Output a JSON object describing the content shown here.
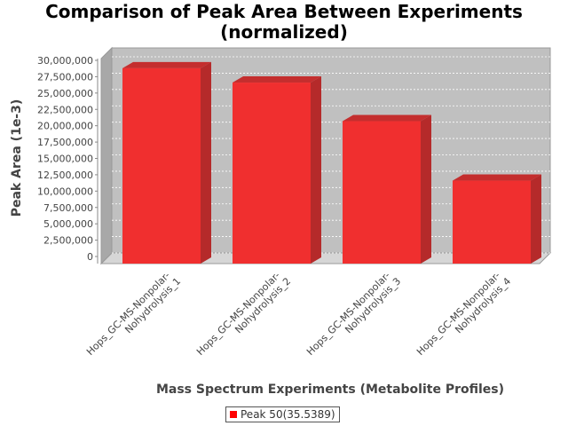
{
  "page": {
    "title_line1": "Comparison of Peak Area Between Experiments",
    "title_line2": "(normalized)"
  },
  "colors": {
    "bar_front": "#f02f2f",
    "bar_side": "#b52a2a",
    "bar_top": "#c42e2e",
    "plot_bg": "#c0c0c0",
    "plot_floor": "#d6d6d6",
    "legend_swatch": "#ff0000"
  },
  "chart_data": {
    "type": "bar",
    "title": "Comparison of Peak Area Between Experiments (normalized)",
    "xlabel": "Mass Spectrum Experiments (Metabolite Profiles)",
    "ylabel": "Peak Area (1e-3)",
    "ylim": [
      0,
      30000000
    ],
    "yticks": [
      0,
      2500000,
      5000000,
      7500000,
      10000000,
      12500000,
      15000000,
      17500000,
      20000000,
      22500000,
      25000000,
      27500000,
      30000000
    ],
    "ytick_labels": [
      "0",
      "2,500,000",
      "5,000,000",
      "7,500,000",
      "10,000,000",
      "12,500,000",
      "15,000,000",
      "17,500,000",
      "20,000,000",
      "22,500,000",
      "25,000,000",
      "27,500,000",
      "30,000,000"
    ],
    "categories": [
      [
        "Hops_GC-MS-Nonpolar-",
        "Nohydrolysis_1"
      ],
      [
        "Hops_GC-MS-Nonpolar-",
        "Nohydrolysis_2"
      ],
      [
        "Hops_GC-MS-Nonpolar-",
        "Nohydrolysis_3"
      ],
      [
        "Hops_GC-MS-Nonpolar-",
        "Nohydrolysis_4"
      ]
    ],
    "series": [
      {
        "name": "Peak 50(35.5389)",
        "values": [
          28800000,
          26600000,
          20700000,
          11600000
        ]
      }
    ],
    "grid": true,
    "legend": "bottom"
  }
}
